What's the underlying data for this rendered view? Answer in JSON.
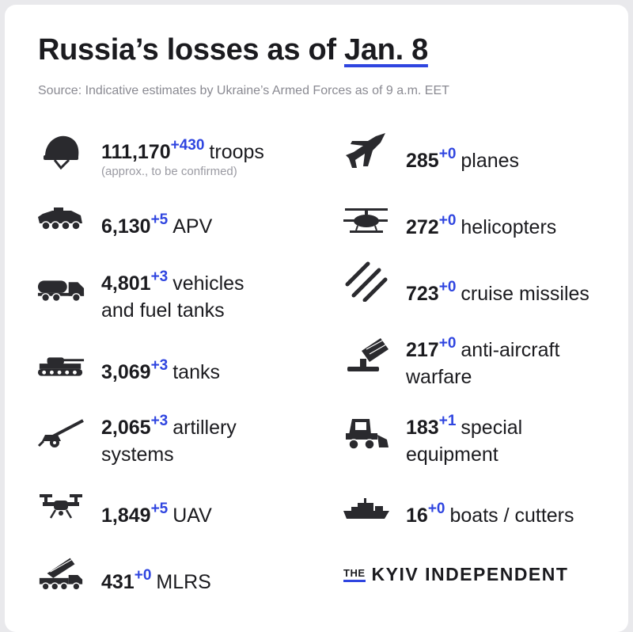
{
  "title": {
    "main": "Russia’s losses as of",
    "date": "Jan. 8"
  },
  "source": "Source: Indicative estimates by Ukraine’s Armed Forces as of 9 a.m. EET",
  "left": [
    {
      "icon": "helmet-icon",
      "value": "111,170",
      "delta": "+430",
      "label": "troops",
      "note": "(approx., to be confirmed)"
    },
    {
      "icon": "apv-icon",
      "value": "6,130",
      "delta": "+5",
      "label": "APV"
    },
    {
      "icon": "truck-icon",
      "value": "4,801",
      "delta": "+3",
      "label": "vehicles",
      "label2": "and fuel tanks"
    },
    {
      "icon": "tank-icon",
      "value": "3,069",
      "delta": "+3",
      "label": "tanks"
    },
    {
      "icon": "artillery-icon",
      "value": "2,065",
      "delta": "+3",
      "label": "artillery",
      "label2": "systems"
    },
    {
      "icon": "drone-icon",
      "value": "1,849",
      "delta": "+5",
      "label": "UAV"
    },
    {
      "icon": "mlrs-icon",
      "value": "431",
      "delta": "+0",
      "label": "MLRS"
    }
  ],
  "right": [
    {
      "icon": "plane-icon",
      "value": "285",
      "delta": "+0",
      "label": "planes"
    },
    {
      "icon": "helicopter-icon",
      "value": "272",
      "delta": "+0",
      "label": "helicopters"
    },
    {
      "icon": "missiles-icon",
      "value": "723",
      "delta": "+0",
      "label": "cruise missiles"
    },
    {
      "icon": "anti-aircraft-icon",
      "value": "217",
      "delta": "+0",
      "label": "anti-aircraft",
      "label2": "warfare"
    },
    {
      "icon": "loader-icon",
      "value": "183",
      "delta": "+1",
      "label": "special",
      "label2": "equipment"
    },
    {
      "icon": "boat-icon",
      "value": "16",
      "delta": "+0",
      "label": "boats / cutters"
    }
  ],
  "brand": {
    "the": "THE",
    "name": "KYIV INDEPENDENT"
  },
  "colors": {
    "accent": "#2f45e0",
    "text": "#1b1b1f",
    "muted": "#8a8a92"
  }
}
